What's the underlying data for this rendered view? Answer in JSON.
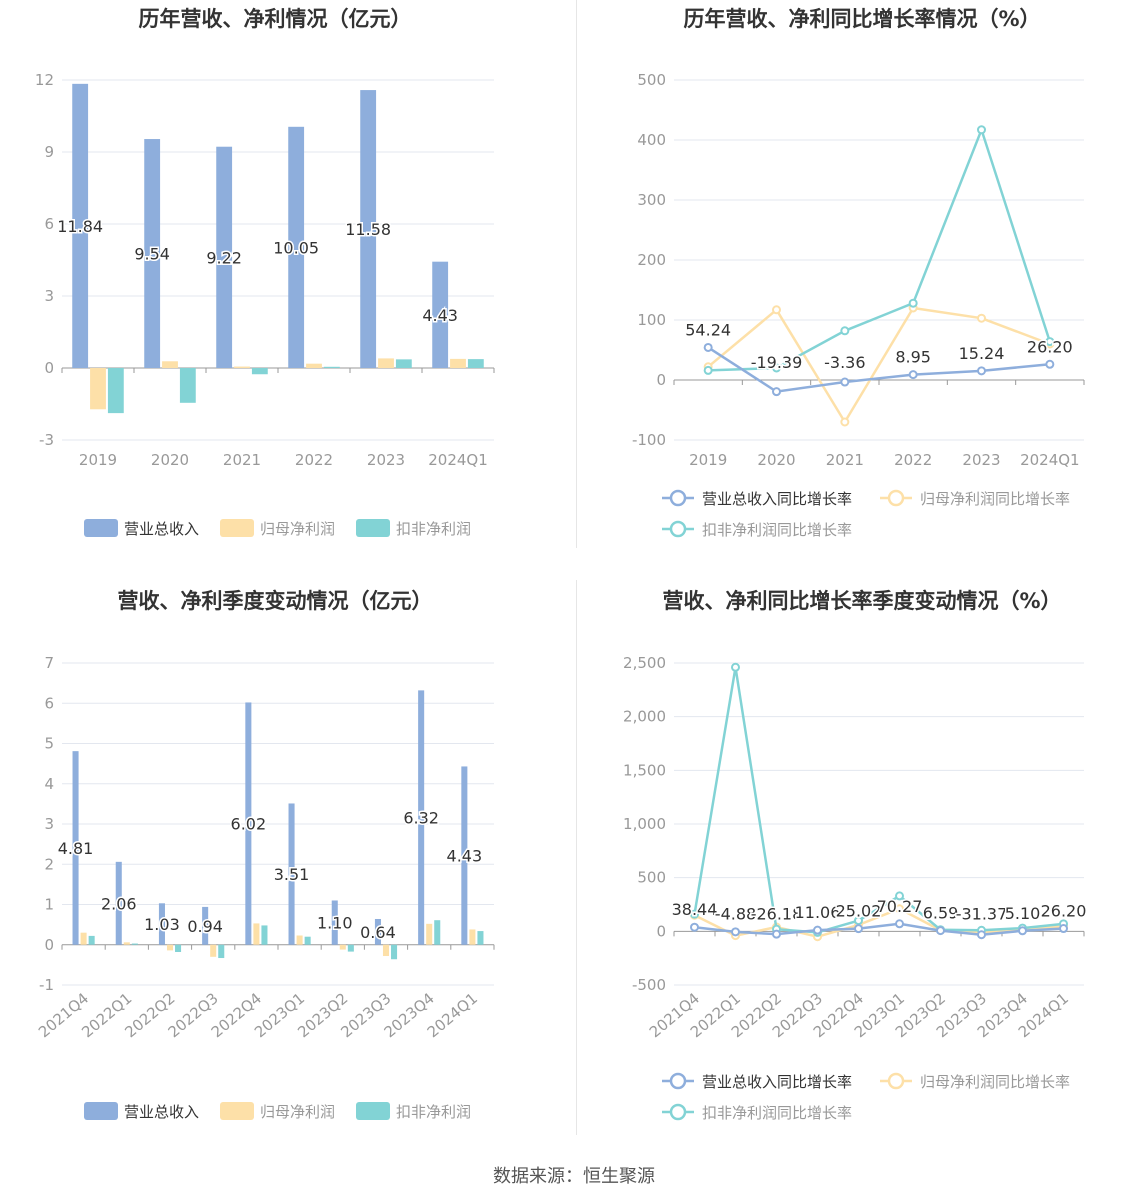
{
  "colors": {
    "revenue": "#8eaedc",
    "net_profit": "#fde0a8",
    "deducted_profit": "#82d3d5",
    "grid": "#e3e7ef",
    "axis_text": "#999999",
    "title": "#333333"
  },
  "source": "数据来源：恒生聚源",
  "chart_data": [
    {
      "id": "annual_amounts",
      "type": "bar",
      "title": "历年营收、净利情况（亿元）",
      "categories": [
        "2019",
        "2020",
        "2021",
        "2022",
        "2023",
        "2024Q1"
      ],
      "ylim": [
        -3,
        12
      ],
      "yticks": [
        -3,
        0,
        3,
        6,
        9,
        12
      ],
      "grid": true,
      "legend_position": "bottom",
      "series": [
        {
          "name": "营业总收入",
          "color_key": "revenue",
          "values": [
            11.84,
            9.54,
            9.22,
            10.05,
            11.58,
            4.43
          ],
          "labels": [
            "11.84",
            "9.54",
            "9.22",
            "10.05",
            "11.58",
            "4.43"
          ]
        },
        {
          "name": "归母净利润",
          "color_key": "net_profit",
          "values": [
            -1.72,
            0.28,
            0.06,
            0.18,
            0.4,
            0.38
          ]
        },
        {
          "name": "扣非净利润",
          "color_key": "deducted_profit",
          "values": [
            -1.88,
            -1.45,
            -0.26,
            0.05,
            0.36,
            0.37
          ]
        }
      ]
    },
    {
      "id": "annual_growth",
      "type": "line",
      "title": "历年营收、净利同比增长率情况（%）",
      "categories": [
        "2019",
        "2020",
        "2021",
        "2022",
        "2023",
        "2024Q1"
      ],
      "ylim": [
        -100,
        500
      ],
      "yticks": [
        -100,
        0,
        100,
        200,
        300,
        400,
        500
      ],
      "grid": true,
      "legend_position": "bottom",
      "series": [
        {
          "name": "营业总收入同比增长率",
          "color_key": "revenue",
          "values": [
            54.24,
            -19.39,
            -3.36,
            8.95,
            15.24,
            26.2
          ],
          "labels": [
            "54.24",
            "-19.39",
            "-3.36",
            "8.95",
            "15.24",
            "26.20"
          ]
        },
        {
          "name": "归母净利润同比增长率",
          "color_key": "net_profit",
          "values": [
            22,
            117,
            -70,
            120,
            103,
            60
          ]
        },
        {
          "name": "扣非净利润同比增长率",
          "color_key": "deducted_profit",
          "values": [
            16,
            20,
            82,
            128,
            417,
            64
          ]
        }
      ]
    },
    {
      "id": "quarterly_amounts",
      "type": "bar",
      "title": "营收、净利季度变动情况（亿元）",
      "categories": [
        "2021Q4",
        "2022Q1",
        "2022Q2",
        "2022Q3",
        "2022Q4",
        "2023Q1",
        "2023Q2",
        "2023Q3",
        "2023Q4",
        "2024Q1"
      ],
      "ylim": [
        -1,
        7
      ],
      "yticks": [
        -1,
        0,
        1,
        2,
        3,
        4,
        5,
        6,
        7
      ],
      "grid": true,
      "legend_position": "bottom",
      "series": [
        {
          "name": "营业总收入",
          "color_key": "revenue",
          "values": [
            4.81,
            2.06,
            1.03,
            0.94,
            6.02,
            3.51,
            1.1,
            0.64,
            6.32,
            4.43
          ],
          "labels": [
            "4.81",
            "2.06",
            "1.03",
            "0.94",
            "6.02",
            "3.51",
            "1.10",
            "0.64",
            "6.32",
            "4.43"
          ]
        },
        {
          "name": "归母净利润",
          "color_key": "net_profit",
          "values": [
            0.3,
            0.06,
            -0.14,
            -0.3,
            0.53,
            0.23,
            -0.12,
            -0.28,
            0.52,
            0.38
          ]
        },
        {
          "name": "扣非净利润",
          "color_key": "deducted_profit",
          "values": [
            0.22,
            0.03,
            -0.18,
            -0.33,
            0.48,
            0.2,
            -0.17,
            -0.36,
            0.61,
            0.34
          ]
        }
      ]
    },
    {
      "id": "quarterly_growth",
      "type": "line",
      "title": "营收、净利同比增长率季度变动情况（%）",
      "categories": [
        "2021Q4",
        "2022Q1",
        "2022Q2",
        "2022Q3",
        "2022Q4",
        "2023Q1",
        "2023Q2",
        "2023Q3",
        "2023Q4",
        "2024Q1"
      ],
      "ylim": [
        -500,
        2500
      ],
      "yticks": [
        -500,
        0,
        500,
        1000,
        1500,
        2000,
        2500
      ],
      "ytick_labels": [
        "-500",
        "0",
        "500",
        "1,000",
        "1,500",
        "2,000",
        "2,500"
      ],
      "grid": true,
      "legend_position": "bottom",
      "series": [
        {
          "name": "营业总收入同比增长率",
          "color_key": "revenue",
          "values": [
            38.44,
            -4.88,
            -26.18,
            11.06,
            25.02,
            70.27,
            6.59,
            -31.37,
            5.1,
            26.2
          ],
          "labels": [
            "38.44",
            "-4.88",
            "-26.18",
            "11.06",
            "25.02",
            "70.27",
            "6.59",
            "-31.37",
            "5.10",
            "26.20"
          ]
        },
        {
          "name": "归母净利润同比增长率",
          "color_key": "net_profit",
          "values": [
            150,
            -40,
            40,
            -50,
            60,
            210,
            10,
            -10,
            15,
            50
          ]
        },
        {
          "name": "扣非净利润同比增长率",
          "color_key": "deducted_profit",
          "values": [
            160,
            2460,
            20,
            -10,
            100,
            330,
            15,
            10,
            30,
            70
          ]
        }
      ]
    }
  ]
}
